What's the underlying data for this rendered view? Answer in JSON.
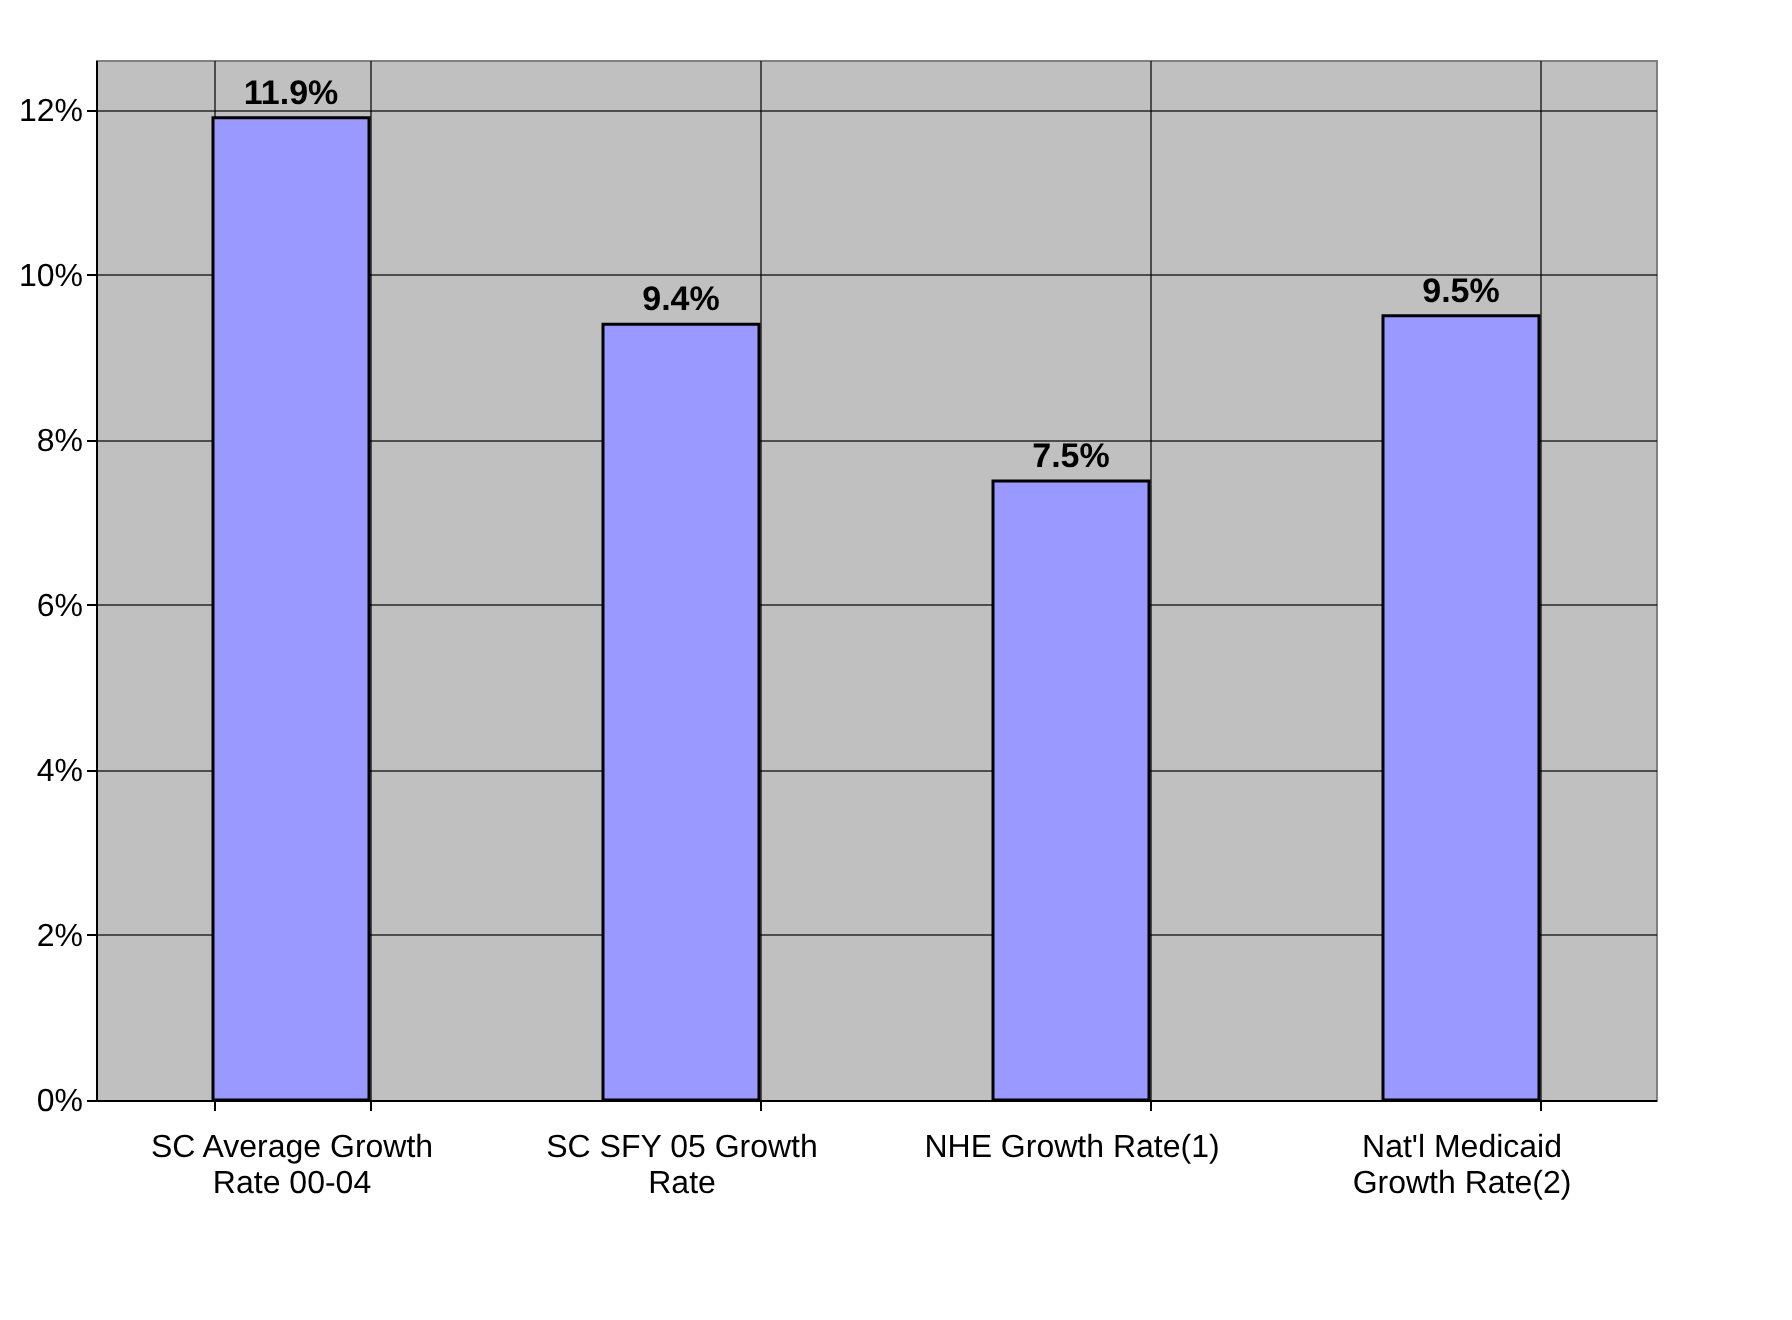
{
  "chart_data": {
    "type": "bar",
    "categories": [
      "SC Average Growth Rate 00-04",
      "SC SFY 05 Growth Rate",
      "NHE Growth Rate(1)",
      "Nat'l Medicaid Growth Rate(2)"
    ],
    "values": [
      11.9,
      9.4,
      7.5,
      9.5
    ],
    "value_labels": [
      "11.9%",
      "9.4%",
      "7.5%",
      "9.5%"
    ],
    "color": "#9999ff",
    "ylim": [
      0,
      12.6
    ],
    "yticks": [
      {
        "value": 0,
        "label": "0%"
      },
      {
        "value": 2,
        "label": "2%"
      },
      {
        "value": 4,
        "label": "4%"
      },
      {
        "value": 6,
        "label": "6%"
      },
      {
        "value": 8,
        "label": "8%"
      },
      {
        "value": 10,
        "label": "10%"
      },
      {
        "value": 12,
        "label": "12%"
      }
    ],
    "grid": true
  }
}
